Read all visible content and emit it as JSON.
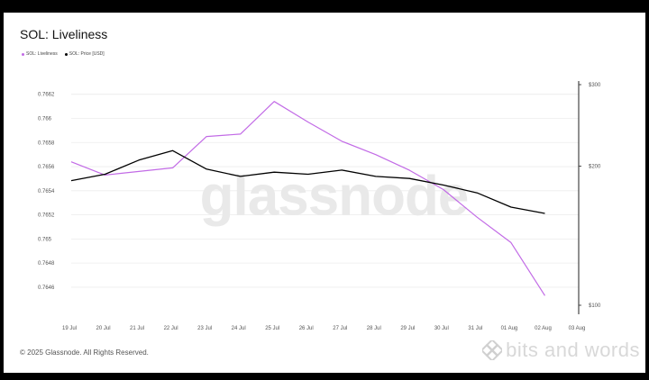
{
  "header": {
    "title": "SOL: Liveliness"
  },
  "footer": {
    "copyright": "© 2025 Glassnode. All Rights Reserved."
  },
  "watermark": {
    "text": "glassnode"
  },
  "branding": {
    "text": "bits and words",
    "icon": "diamond-logo-icon"
  },
  "colors": {
    "liveliness": "#c26be6",
    "price": "#000000",
    "grid": "#ececec",
    "axis_text": "#555555"
  },
  "chart_data": {
    "type": "line",
    "x": [
      "19 Jul",
      "20 Jul",
      "21 Jul",
      "22 Jul",
      "23 Jul",
      "24 Jul",
      "25 Jul",
      "26 Jul",
      "27 Jul",
      "28 Jul",
      "29 Jul",
      "30 Jul",
      "31 Jul",
      "01 Aug",
      "02 Aug",
      "03 Aug"
    ],
    "legend": [
      "SOL: Liveliness",
      "SOL: Price [USD]"
    ],
    "legend_position": "top-left",
    "grid": true,
    "series": [
      {
        "name": "SOL: Liveliness",
        "axis": "left",
        "values": [
          0.76564,
          0.76553,
          0.76556,
          0.76559,
          0.76585,
          0.76587,
          0.76614,
          0.76597,
          0.76581,
          0.7657,
          0.76557,
          0.76541,
          0.76518,
          0.76497,
          0.76453,
          null
        ]
      },
      {
        "name": "SOL: Price [USD]",
        "axis": "right",
        "values": [
          186,
          192,
          206,
          216,
          197,
          190,
          194,
          192,
          196,
          190,
          188,
          182,
          175,
          163,
          158,
          null
        ]
      }
    ],
    "y_left": {
      "ticks": [
        "0.7646",
        "0.7648",
        "0.765",
        "0.7652",
        "0.7654",
        "0.7656",
        "0.7658",
        "0.766",
        "0.7662"
      ],
      "tick_values": [
        0.7646,
        0.7648,
        0.765,
        0.7652,
        0.7654,
        0.7656,
        0.7658,
        0.766,
        0.7662
      ],
      "range": [
        0.76445,
        0.76628
      ]
    },
    "y_right": {
      "ticks": [
        "$100",
        "$200",
        "$300"
      ],
      "tick_values": [
        100,
        200,
        300
      ],
      "scale": "log",
      "range": [
        100,
        300
      ]
    }
  }
}
